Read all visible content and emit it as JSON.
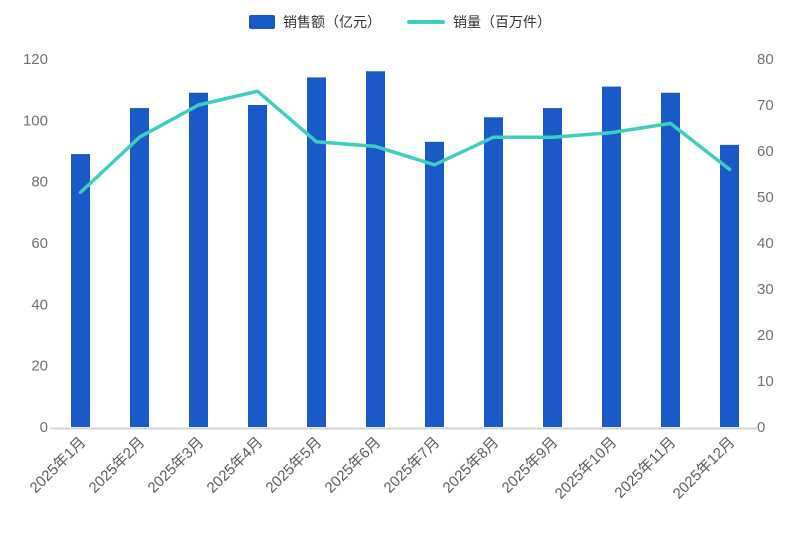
{
  "legend": {
    "items": [
      {
        "label": "销售额（亿元）",
        "type": "bar",
        "color": "#1A5AC8"
      },
      {
        "label": "销量（百万件）",
        "type": "line",
        "color": "#3CCFBE"
      }
    ]
  },
  "chart_data": {
    "type": "bar+line dual-axis",
    "categories": [
      "2025年1月",
      "2025年2月",
      "2025年3月",
      "2025年4月",
      "2025年5月",
      "2025年6月",
      "2025年7月",
      "2025年8月",
      "2025年9月",
      "2025年10月",
      "2025年11月",
      "2025年12月"
    ],
    "series": [
      {
        "name": "销售额（亿元）",
        "type": "bar",
        "axis": "left",
        "color": "#1A5AC8",
        "values": [
          89,
          104,
          109,
          105,
          114,
          116,
          93,
          101,
          104,
          111,
          109,
          92
        ]
      },
      {
        "name": "销量（百万件）",
        "type": "line",
        "axis": "right",
        "color": "#3CCFBE",
        "values": [
          51,
          63,
          70,
          73,
          62,
          61,
          57,
          63,
          63,
          64,
          66,
          56
        ]
      }
    ],
    "left_axis": {
      "min": 0,
      "max": 120,
      "step": 20,
      "ticks": [
        0,
        20,
        40,
        60,
        80,
        100,
        120
      ]
    },
    "right_axis": {
      "min": 0,
      "max": 80,
      "step": 10,
      "ticks": [
        0,
        10,
        20,
        30,
        40,
        50,
        60,
        70,
        80
      ]
    },
    "grid": false,
    "legend_position": "top-center",
    "x_label_rotation": 45,
    "axis_label_color": "#6E7079",
    "x_label_color": "#5c5c5c",
    "axis_line_color": "#d4d4d4",
    "background": "#ffffff"
  }
}
